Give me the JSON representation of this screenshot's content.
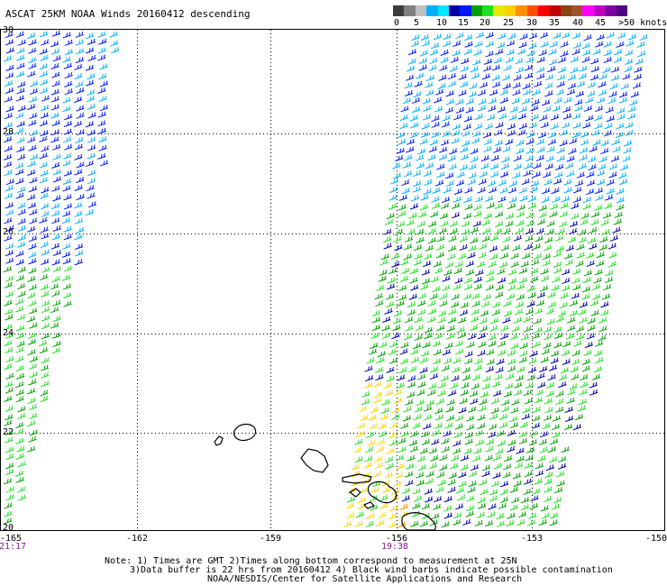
{
  "title": "ASCAT 25KM NOAA Winds 20160412 descending",
  "legend": {
    "labels": [
      "0",
      "5",
      "10",
      "15",
      "20",
      "25",
      "30",
      "35",
      "40",
      "45",
      ">50 knots"
    ],
    "colors": [
      "#3c3c3c",
      "#7f7f7f",
      "#bfbfbf",
      "#00b0ff",
      "#00e8ff",
      "#0000a8",
      "#0018ff",
      "#00a000",
      "#20e020",
      "#e8e800",
      "#ffd000",
      "#ff9000",
      "#ff5000",
      "#ff0000",
      "#c00000",
      "#8b4513",
      "#a0522d",
      "#ff00ff",
      "#c000c0",
      "#8000a0",
      "#500080"
    ]
  },
  "axes": {
    "lat_labels": [
      "30",
      "28",
      "26",
      "24",
      "22",
      "20"
    ],
    "lon_labels": [
      "-165",
      "-162",
      "-159",
      "-156",
      "-153",
      "-150"
    ],
    "time_labels": [
      "21:17",
      "19:38"
    ]
  },
  "notes": [
    "Note: 1) Times are GMT 2)Times along bottom correspond to measurement at 25N",
    "3)Data buffer is 22 hrs from 20160412 4) Black wind barbs indicate possible contamination",
    "NOAA/NESDIS/Center for Satellite Applications and Research"
  ]
}
